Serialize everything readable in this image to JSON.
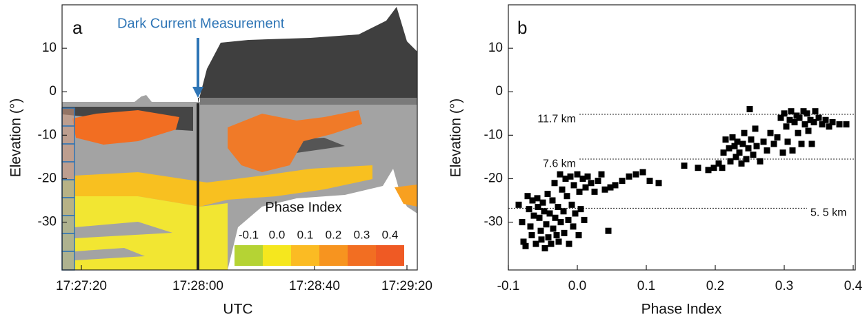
{
  "chart_data": [
    {
      "type": "image",
      "title": "a",
      "annotation": "Dark Current Measurement",
      "x_label": "UTC",
      "y_label": "Elevation (°)",
      "xticks": [
        "17:27:20",
        "17:28:00",
        "17:28:40",
        "17:29:20"
      ],
      "ylim": [
        -41,
        20
      ],
      "yticks": [
        -30,
        -20,
        -10,
        0,
        10
      ],
      "colorbar": {
        "label": "Phase Index",
        "ticks": [
          -0.1,
          {
            "value": 0,
            "label": "0.0"
          },
          0.1,
          0.2,
          0.3,
          0.4
        ],
        "colors": [
          "#b5d334",
          "#f5e71e",
          "#fbbb23",
          "#f7941f",
          "#f26e22",
          "#ef5a24"
        ]
      }
    },
    {
      "type": "scatter",
      "title": "b",
      "x_label": "Phase Index",
      "y_label": "Elevation (°)",
      "xlim": [
        -0.1,
        0.4
      ],
      "xticks": [
        -0.1,
        {
          "value": 0,
          "label": "0.0"
        },
        0.1,
        0.2,
        0.3,
        0.4
      ],
      "ylim": [
        -41,
        20
      ],
      "yticks": [
        -30,
        -20,
        -10,
        0,
        10
      ],
      "color": "#000000",
      "x": [
        -0.085,
        -0.08,
        -0.078,
        -0.075,
        -0.072,
        -0.07,
        -0.068,
        -0.066,
        -0.065,
        -0.063,
        -0.06,
        -0.058,
        -0.057,
        -0.055,
        -0.053,
        -0.052,
        -0.05,
        -0.048,
        -0.047,
        -0.045,
        -0.043,
        -0.042,
        -0.04,
        -0.038,
        -0.036,
        -0.035,
        -0.033,
        -0.032,
        -0.03,
        -0.028,
        -0.027,
        -0.025,
        -0.024,
        -0.022,
        -0.02,
        -0.019,
        -0.017,
        -0.015,
        -0.013,
        -0.012,
        -0.01,
        -0.008,
        -0.006,
        -0.005,
        -0.003,
        0.0,
        0.002,
        0.003,
        0.005,
        0.008,
        0.01,
        0.012,
        0.015,
        0.02,
        0.025,
        0.03,
        0.035,
        0.04,
        0.045,
        0.048,
        0.055,
        0.065,
        0.075,
        0.085,
        0.095,
        0.105,
        0.118,
        0.155,
        0.175,
        0.19,
        0.198,
        0.205,
        0.21,
        0.212,
        0.215,
        0.22,
        0.222,
        0.225,
        0.228,
        0.23,
        0.232,
        0.235,
        0.238,
        0.24,
        0.242,
        0.245,
        0.248,
        0.25,
        0.252,
        0.255,
        0.258,
        0.26,
        0.265,
        0.27,
        0.275,
        0.28,
        0.285,
        0.29,
        0.295,
        0.298,
        0.3,
        0.303,
        0.305,
        0.308,
        0.31,
        0.312,
        0.315,
        0.318,
        0.32,
        0.322,
        0.325,
        0.328,
        0.33,
        0.333,
        0.335,
        0.338,
        0.34,
        0.343,
        0.345,
        0.35,
        0.355,
        0.36,
        0.365,
        0.37,
        0.38,
        0.39
      ],
      "values": [
        -26,
        -30,
        -34.5,
        -35.5,
        -24,
        -27,
        -31,
        -33,
        -25,
        -28.5,
        -35,
        -24.5,
        -26.5,
        -29,
        -32,
        -34,
        -25.5,
        -27.5,
        -36,
        -30.5,
        -23.5,
        -33.5,
        -28,
        -35,
        -25,
        -31.5,
        -21,
        -29,
        -33,
        -26.5,
        -34.5,
        -19,
        -30,
        -22.5,
        -27.5,
        -32.5,
        -20,
        -24,
        -29.5,
        -35,
        -19.5,
        -26,
        -31,
        -21.5,
        -28,
        -19,
        -33,
        -23,
        -27,
        -20,
        -29.5,
        -22,
        -19.5,
        -21,
        -23,
        -20.5,
        -19,
        -22.5,
        -32,
        -22,
        -21.5,
        -20.5,
        -19.5,
        -19,
        -18.5,
        -20.5,
        -21,
        -17,
        -17.5,
        -18,
        -17.5,
        -16.5,
        -17.5,
        -14,
        -11,
        -13,
        -16,
        -10.5,
        -12.5,
        -15,
        -11.5,
        -14,
        -16.5,
        -12,
        -9.5,
        -15.5,
        -13,
        -4,
        -11,
        -14.5,
        -8.5,
        -12.5,
        -16,
        -11.5,
        -13.5,
        -9.5,
        -12,
        -10.5,
        -6,
        -14,
        -5,
        -8,
        -11.5,
        -6.5,
        -4.5,
        -13.5,
        -7,
        -5.5,
        -9.5,
        -6,
        -12,
        -4.5,
        -7.5,
        -5,
        -9,
        -6.5,
        -12,
        -7,
        -4.5,
        -6,
        -7.5,
        -6.5,
        -8,
        -7,
        -7.5,
        -7.5
      ],
      "reference_lines": [
        {
          "value": -5.2,
          "label": "11.7 km"
        },
        {
          "value": -15.5,
          "label": "7.6 km"
        },
        {
          "value": -26.8,
          "label": "5. 5 km"
        }
      ]
    }
  ]
}
